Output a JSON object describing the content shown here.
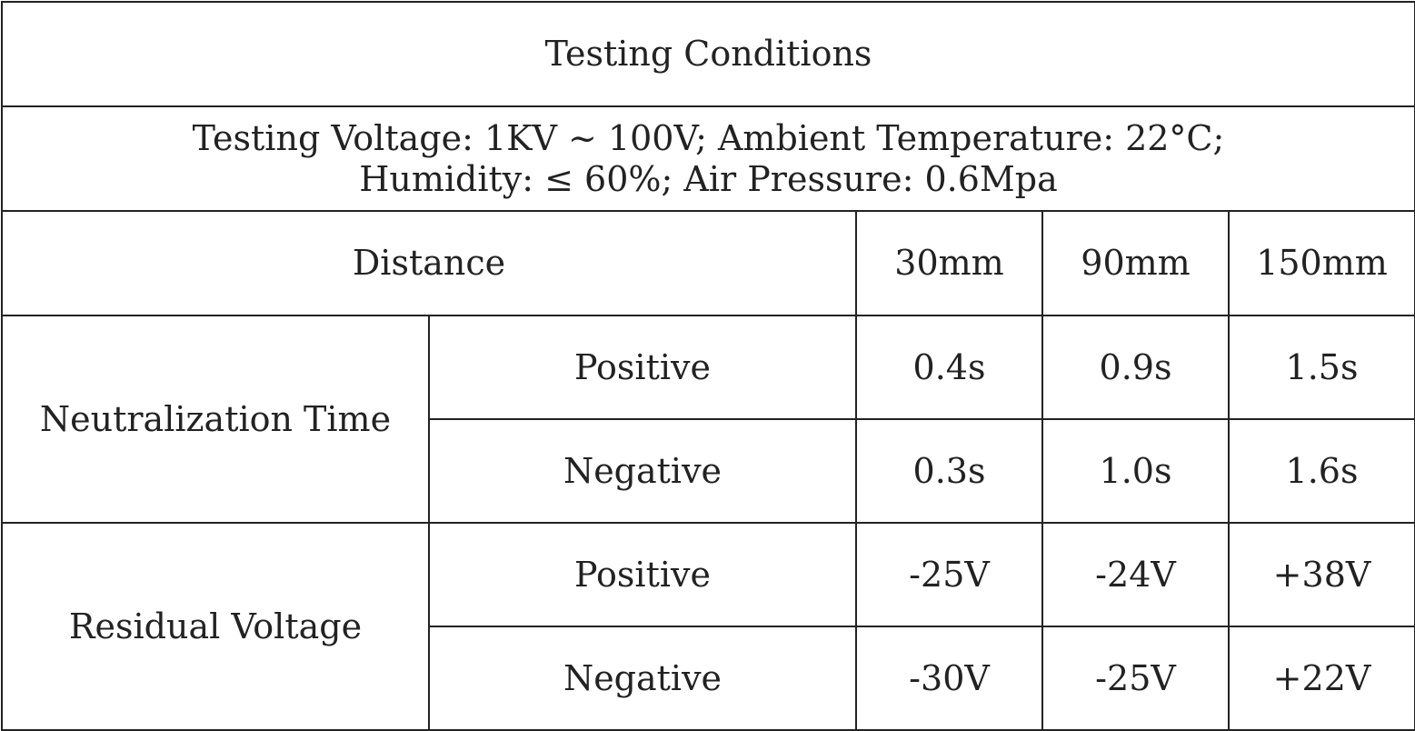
{
  "table": {
    "title": "Testing Conditions",
    "conditions": [
      "Testing Voltage: 1KV ~ 100V; Ambient Temperature: 22°C;",
      "Humidity: ≤ 60%; Air Pressure: 0.6Mpa"
    ],
    "header": {
      "label": "Distance",
      "distances": [
        "30mm",
        "90mm",
        "150mm"
      ]
    },
    "groups": [
      {
        "name": "Neutralization Time",
        "rows": [
          {
            "polarity": "Positive",
            "values": [
              "0.4s",
              "0.9s",
              "1.5s"
            ]
          },
          {
            "polarity": "Negative",
            "values": [
              "0.3s",
              "1.0s",
              "1.6s"
            ]
          }
        ]
      },
      {
        "name": "Residual Voltage",
        "rows": [
          {
            "polarity": "Positive",
            "values": [
              "-25V",
              "-24V",
              "+38V"
            ]
          },
          {
            "polarity": "Negative",
            "values": [
              "-30V",
              "-25V",
              "+22V"
            ]
          }
        ]
      }
    ]
  }
}
